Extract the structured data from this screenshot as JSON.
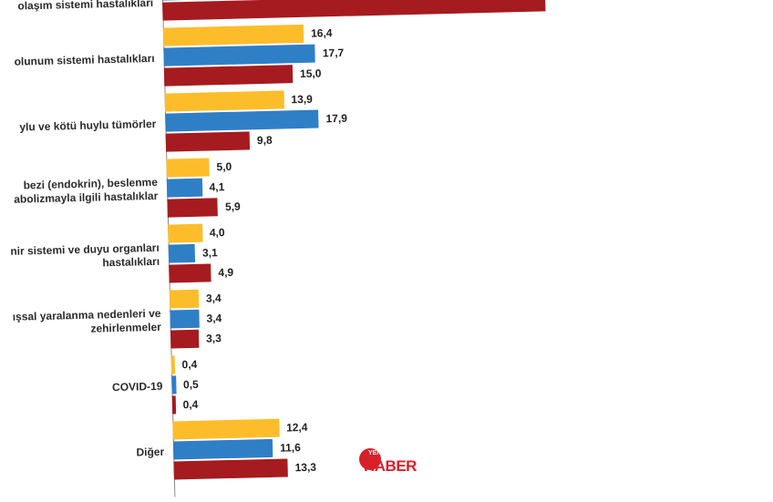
{
  "chart_data": {
    "type": "bar",
    "orientation": "horizontal",
    "categories": [
      "olaşım sistemi hastalıkları",
      "olunum sistemi hastalıkları",
      "ylu ve kötü huylu tümörler",
      "bezi (endokrin), beslenme\nabolizmayla ilgili hastalıklar",
      "nir sistemi ve duyu organları\nhastalıkları",
      "ışsal yaralanma nedenleri ve\nzehirlenmeler",
      "COVID-19",
      "Diğer"
    ],
    "series": [
      {
        "values": [
          null,
          16.4,
          13.9,
          5.0,
          4.0,
          3.4,
          0.4,
          12.4
        ]
      },
      {
        "values": [
          null,
          17.7,
          17.9,
          4.1,
          3.1,
          3.4,
          0.5,
          11.6
        ]
      },
      {
        "values": [
          null,
          15.0,
          9.8,
          5.9,
          4.9,
          3.3,
          0.4,
          13.3
        ]
      }
    ],
    "value_labels": [
      [
        "",
        "16,4",
        "13,9",
        "5,0",
        "4,0",
        "3,4",
        "0,4",
        "12,4"
      ],
      [
        "",
        "17,7",
        "17,9",
        "4,1",
        "3,1",
        "3,4",
        "0,5",
        "11,6"
      ],
      [
        "",
        "15,0",
        "9,8",
        "5,9",
        "4,9",
        "3,3",
        "0,4",
        "13,3"
      ]
    ],
    "colors": [
      "#fdbd2b",
      "#2f7fc7",
      "#a51b1f"
    ],
    "grid": false
  },
  "watermark": {
    "small": "YENİZEMİN",
    "big": "HABER"
  }
}
